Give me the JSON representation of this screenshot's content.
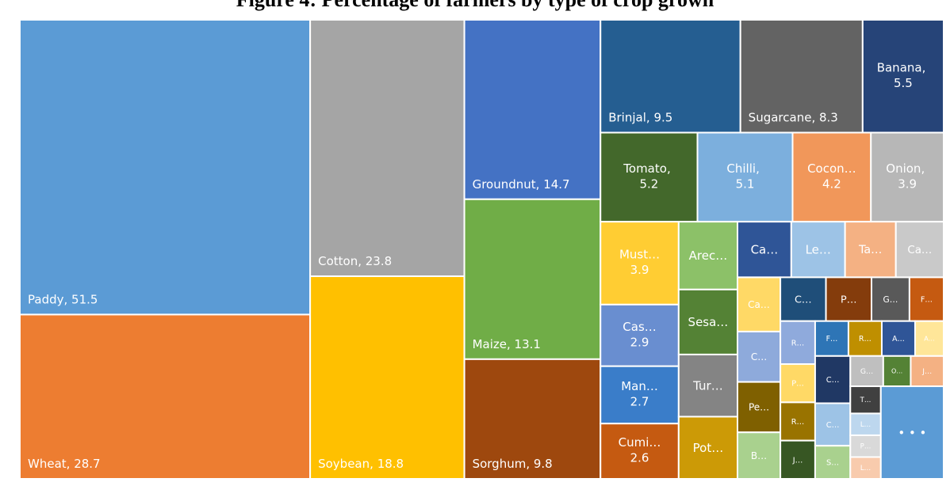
{
  "chart_data": {
    "type": "treemap",
    "title": "Figure 4: Percentage of farmers by type of crop grown",
    "label_separator": ", ",
    "categories": [
      "Paddy",
      "Wheat",
      "Cotton",
      "Soybean",
      "Groundnut",
      "Maize",
      "Sorghum",
      "Brinjal",
      "Sugarcane",
      "Banana",
      "Tomato",
      "Chilli",
      "Cocon…",
      "Onion",
      "Must…",
      "Cas…",
      "Man…",
      "Cumi…",
      "Arec…",
      "Sesa…",
      "Tur…",
      "Pot…",
      "Ca…",
      "Le…",
      "Ta…",
      "Ca…",
      "Ca…",
      "C…",
      "Pe…",
      "B…",
      "C…",
      "P…",
      "G…",
      "F…",
      "R…",
      "P…",
      "R…",
      "J…",
      "F…",
      "R…",
      "A…",
      "A…",
      "C…",
      "C…",
      "S…",
      "G…",
      "O…",
      "J…",
      "T…",
      "L…",
      "P…",
      "L…",
      "• • •"
    ],
    "values": [
      51.5,
      28.7,
      23.8,
      18.8,
      14.7,
      13.1,
      9.8,
      9.5,
      8.3,
      5.5,
      5.2,
      5.1,
      4.2,
      3.9,
      3.9,
      2.9,
      2.7,
      2.6,
      2.4,
      2.3,
      2.2,
      2.2,
      1.8,
      1.8,
      1.7,
      1.6,
      1.4,
      1.3,
      1.3,
      1.2,
      1.2,
      1.2,
      1.0,
      0.9,
      0.9,
      0.8,
      0.8,
      0.8,
      0.7,
      0.7,
      0.7,
      0.6,
      1.0,
      0.9,
      0.7,
      0.6,
      0.5,
      0.6,
      0.5,
      0.4,
      0.4,
      0.4,
      3.5
    ],
    "value_labels": [
      "51.5",
      "28.7",
      "23.8",
      "18.8",
      "14.7",
      "13.1",
      "9.8",
      "9.5",
      "8.3",
      "5.5",
      "5.2",
      "5.1",
      "4.2",
      "3.9",
      "3.9",
      "2.9",
      "2.7",
      "2.6",
      null,
      null,
      null,
      null,
      null,
      null,
      null,
      null,
      null,
      null,
      null,
      null,
      null,
      null,
      null,
      null,
      null,
      null,
      null,
      null,
      null,
      null,
      null,
      null,
      null,
      null,
      null,
      null,
      null,
      null,
      null,
      null,
      null,
      null,
      null
    ],
    "colors": [
      "#5b9bd5",
      "#ed7d31",
      "#a5a5a5",
      "#ffc000",
      "#4472c4",
      "#70ad47",
      "#9e480e",
      "#255e91",
      "#636363",
      "#264478",
      "#43682b",
      "#7cafdd",
      "#f1975a",
      "#b7b7b7",
      "#ffcd33",
      "#698ed0",
      "#3a7dc9",
      "#c55a11",
      "#8cc168",
      "#548235",
      "#848484",
      "#cc9a06",
      "#2f5597",
      "#9dc3e6",
      "#f4b183",
      "#c9c9c9",
      "#ffd966",
      "#8eaadb",
      "#7f6000",
      "#a9d18e",
      "#1f4e79",
      "#843c0c",
      "#595959",
      "#c55a11",
      "#8faadc",
      "#ffd966",
      "#997300",
      "#375623",
      "#2e75b6",
      "#bf8f00",
      "#2f5597",
      "#ffe699",
      "#203864",
      "#9dc3e6",
      "#a9d18e",
      "#bfbfbf",
      "#548235",
      "#f4b183",
      "#404040",
      "#bdd7ee",
      "#d9d9d9",
      "#f8cbad",
      "#5b9bd5"
    ]
  }
}
